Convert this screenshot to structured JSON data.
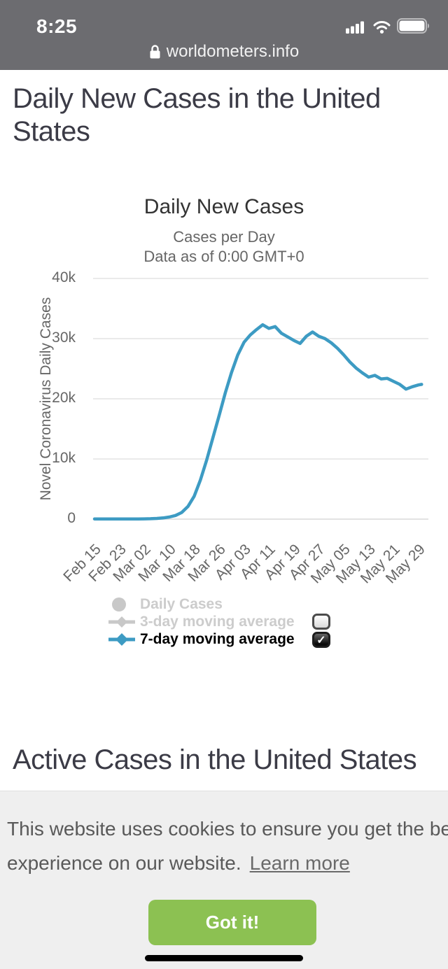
{
  "status_bar": {
    "time": "8:25"
  },
  "url_bar": {
    "domain": "worldometers.info"
  },
  "headings": {
    "daily": "Daily New Cases in the United States",
    "active": "Active Cases in the United States"
  },
  "chart_data": {
    "type": "line",
    "title": "Daily New Cases",
    "subtitle": "Cases per Day",
    "subtitle2": "Data as of 0:00 GMT+0",
    "xlabel": "",
    "ylabel": "Novel Coronavirus Daily Cases",
    "ylim": [
      0,
      40000
    ],
    "grid": true,
    "legend_position": "bottom",
    "yticks": [
      {
        "value": 0,
        "label": "0"
      },
      {
        "value": 10000,
        "label": "10k"
      },
      {
        "value": 20000,
        "label": "20k"
      },
      {
        "value": 30000,
        "label": "30k"
      },
      {
        "value": 40000,
        "label": "40k"
      }
    ],
    "xticklabels": [
      "Feb 15",
      "Feb 23",
      "Mar 02",
      "Mar 10",
      "Mar 18",
      "Mar 26",
      "Apr 03",
      "Apr 11",
      "Apr 19",
      "Apr 27",
      "May 05",
      "May 13",
      "May 21",
      "May 29"
    ],
    "xtick_interval_days": 8,
    "series": [
      {
        "name": "Daily Cases",
        "enabled": false,
        "color": "#c8c8c8",
        "label_color": "#cccccc",
        "marker": "circle"
      },
      {
        "name": "3-day moving average",
        "enabled": false,
        "color": "#c8c8c8",
        "label_color": "#cccccc",
        "marker": "line-diamond"
      },
      {
        "name": "7-day moving average",
        "enabled": true,
        "color": "#3d9bc3",
        "label_color": "#000000",
        "marker": "line-diamond",
        "points": {
          "dates": [
            "Feb 15",
            "Feb 17",
            "Feb 19",
            "Feb 21",
            "Feb 23",
            "Feb 25",
            "Feb 27",
            "Feb 29",
            "Mar 02",
            "Mar 04",
            "Mar 06",
            "Mar 08",
            "Mar 10",
            "Mar 12",
            "Mar 14",
            "Mar 16",
            "Mar 18",
            "Mar 20",
            "Mar 22",
            "Mar 24",
            "Mar 26",
            "Mar 28",
            "Mar 30",
            "Apr 01",
            "Apr 03",
            "Apr 05",
            "Apr 07",
            "Apr 09",
            "Apr 11",
            "Apr 13",
            "Apr 15",
            "Apr 17",
            "Apr 19",
            "Apr 21",
            "Apr 23",
            "Apr 25",
            "Apr 27",
            "Apr 29",
            "May 01",
            "May 03",
            "May 05",
            "May 07",
            "May 09",
            "May 11",
            "May 13",
            "May 15",
            "May 17",
            "May 19",
            "May 21",
            "May 23",
            "May 25",
            "May 27",
            "May 29",
            "May 30"
          ],
          "day_offsets": [
            0,
            2,
            4,
            6,
            8,
            10,
            12,
            14,
            16,
            18,
            20,
            22,
            24,
            26,
            28,
            30,
            32,
            34,
            36,
            38,
            40,
            42,
            44,
            46,
            48,
            50,
            52,
            54,
            56,
            58,
            60,
            62,
            64,
            66,
            68,
            70,
            72,
            74,
            76,
            78,
            80,
            82,
            84,
            86,
            88,
            90,
            92,
            94,
            96,
            98,
            100,
            102,
            104,
            105
          ],
          "values": [
            30,
            25,
            25,
            25,
            25,
            25,
            25,
            30,
            45,
            70,
            120,
            200,
            350,
            600,
            1100,
            2100,
            3800,
            6500,
            9800,
            13500,
            17200,
            21000,
            24400,
            27300,
            29400,
            30600,
            31500,
            32300,
            31700,
            32000,
            30900,
            30300,
            29700,
            29200,
            30400,
            31100,
            30400,
            30000,
            29300,
            28400,
            27300,
            26100,
            25100,
            24300,
            23600,
            23900,
            23300,
            23400,
            22900,
            22400,
            21600,
            22000,
            22300,
            22400
          ]
        }
      }
    ]
  },
  "legend": {
    "checkmark": "✓",
    "checkboxes": [
      {
        "for_series": "3-day moving average",
        "checked": false
      },
      {
        "for_series": "7-day moving average",
        "checked": true
      }
    ]
  },
  "cookie_banner": {
    "line1": "This website uses cookies to ensure you get the best",
    "line2": "experience on our website.",
    "link_label": "Learn more",
    "button_label": "Got it!"
  },
  "colors": {
    "header_bg": "#6c6c70",
    "line_blue": "#3d9bc3",
    "button_green": "#8cc152",
    "banner_bg": "#efefef",
    "heading_text": "#3b3b46",
    "grid_line": "#e3e3e3",
    "legend_disabled": "#cccccc"
  }
}
